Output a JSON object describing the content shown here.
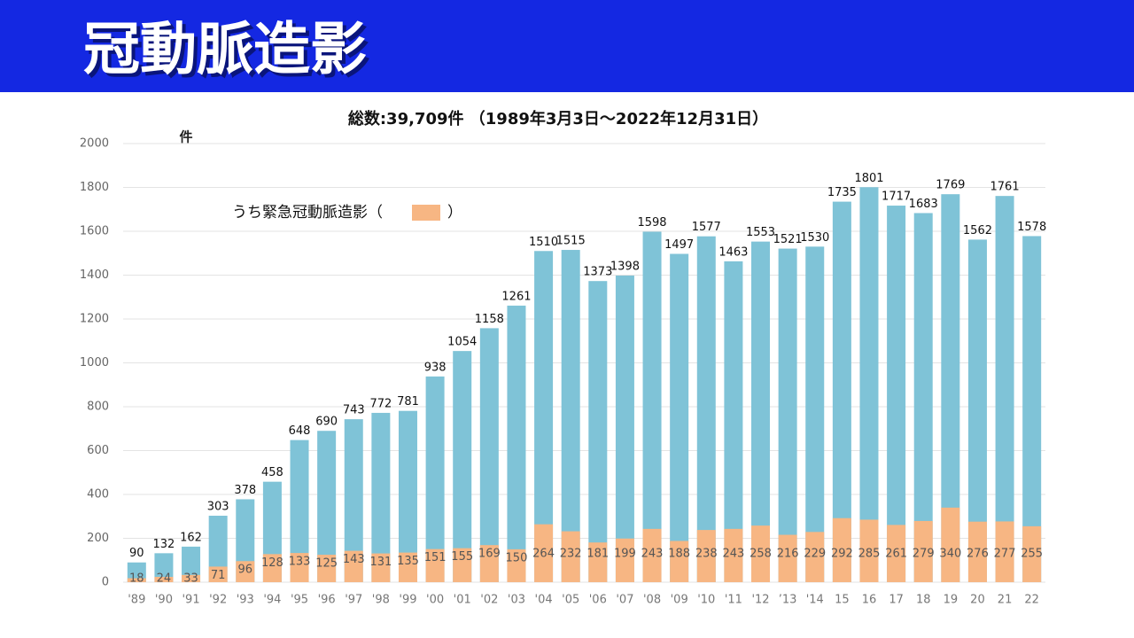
{
  "header": {
    "title": "冠動脈造影"
  },
  "chart_data": {
    "type": "overlap-bar",
    "title": "総数:39,709件 （1989年3月3日～2022年12月31日）",
    "y_unit": "件",
    "categories": [
      "'89",
      "'90",
      "'91",
      "'92",
      "'93",
      "'94",
      "'95",
      "'96",
      "'97",
      "'98",
      "'99",
      "'00",
      "'01",
      "'02",
      "'03",
      "'04",
      "'05",
      "'06",
      "'07",
      "'08",
      "'09",
      "'10",
      "'11",
      "'12",
      "’13",
      "'14",
      "15",
      "16",
      "17",
      "18",
      "19",
      "20",
      "21",
      "22"
    ],
    "series": [
      {
        "color": "#7fc3d7",
        "values": [
          90,
          132,
          162,
          303,
          378,
          458,
          648,
          690,
          743,
          772,
          781,
          938,
          1054,
          1158,
          1261,
          1510,
          1515,
          1373,
          1398,
          1598,
          1497,
          1577,
          1463,
          1553,
          1521,
          1530,
          1735,
          1801,
          1717,
          1683,
          1769,
          1562,
          1761,
          1578
        ]
      },
      {
        "name": "うち緊急冠動脈造影（",
        "color": "#f7b683",
        "values": [
          18,
          24,
          33,
          71,
          96,
          128,
          133,
          125,
          143,
          131,
          135,
          151,
          155,
          169,
          150,
          264,
          232,
          181,
          199,
          243,
          188,
          238,
          243,
          258,
          216,
          229,
          292,
          285,
          261,
          279,
          340,
          276,
          277,
          255
        ]
      }
    ],
    "legend_close": "）",
    "ylim": [
      0,
      2000
    ],
    "yticks": [
      0,
      200,
      400,
      600,
      800,
      1000,
      1200,
      1400,
      1600,
      1800,
      2000
    ],
    "grid": true
  }
}
